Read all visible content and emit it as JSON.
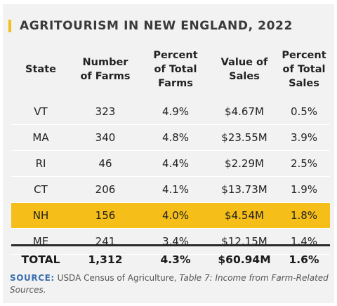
{
  "colors": {
    "accent": "#f5be18",
    "source_label": "#3a6fb0",
    "card_bg": "#f2f2f2"
  },
  "title": "AGRITOURISM IN NEW ENGLAND, 2022",
  "chart_data": {
    "type": "table",
    "title": "AGRITOURISM IN NEW ENGLAND, 2022",
    "columns": [
      "State",
      "Number\nof Farms",
      "Percent\nof Total\nFarms",
      "Value of\nSales",
      "Percent\nof Total\nSales"
    ],
    "rows": [
      [
        "VT",
        "323",
        "4.9%",
        "$4.67M",
        "0.5%"
      ],
      [
        "MA",
        "340",
        "4.8%",
        "$23.55M",
        "3.9%"
      ],
      [
        "RI",
        "46",
        "4.4%",
        "$2.29M",
        "2.5%"
      ],
      [
        "CT",
        "206",
        "4.1%",
        "$13.73M",
        "1.9%"
      ],
      [
        "NH",
        "156",
        "4.0%",
        "$4.54M",
        "1.8%"
      ],
      [
        "ME",
        "241",
        "3.4%",
        "$12.15M",
        "1.4%"
      ]
    ],
    "highlighted_row": "NH",
    "total": [
      "TOTAL",
      "1,312",
      "4.3%",
      "$60.94M",
      "1.6%"
    ]
  },
  "source": {
    "label": "SOURCE:",
    "text": " USDA Census of Agriculture, ",
    "italic": "Table 7: Income from Farm-Related Sources."
  }
}
